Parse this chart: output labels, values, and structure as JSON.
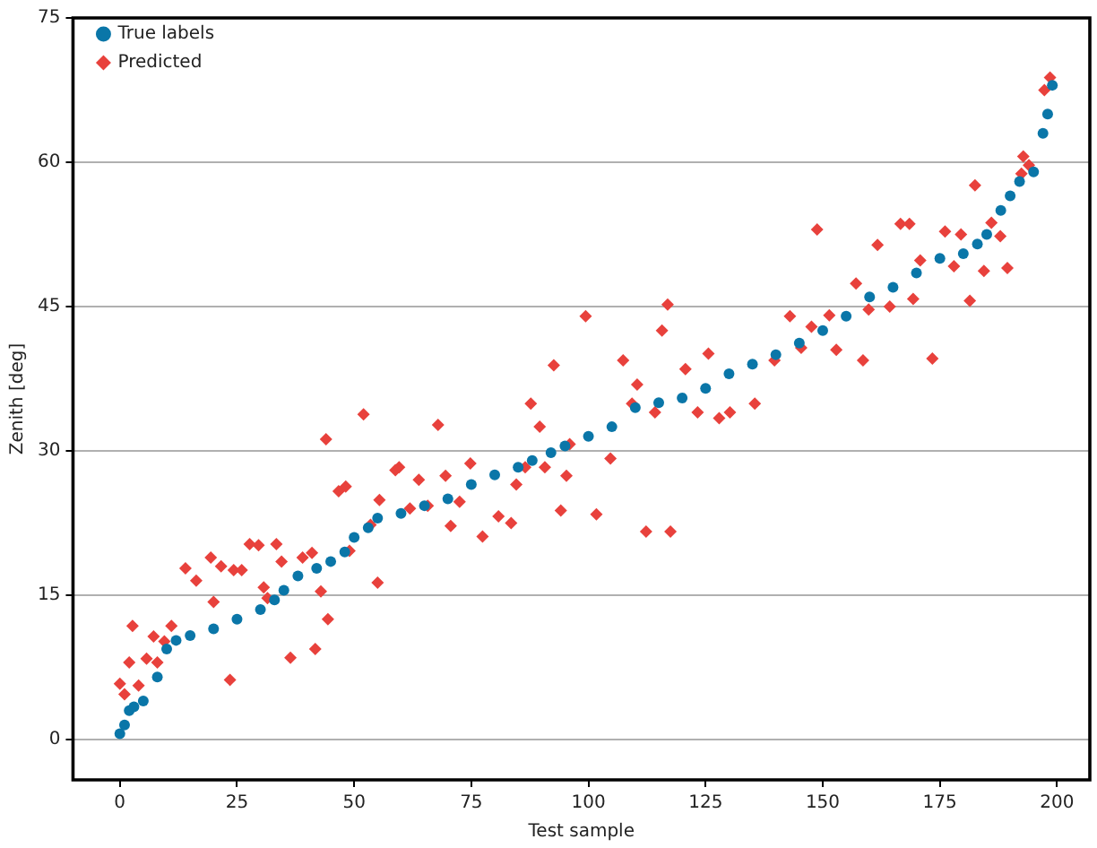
{
  "chart_data": {
    "type": "scatter",
    "xlabel": "Test sample",
    "ylabel": "Zenith [deg]",
    "xlim": [
      -10,
      207
    ],
    "ylim": [
      -4.2,
      75
    ],
    "xticks": [
      0,
      25,
      50,
      75,
      100,
      125,
      150,
      175,
      200
    ],
    "yticks": [
      0,
      15,
      30,
      45,
      60,
      75
    ],
    "grid": "y",
    "legend": "top left",
    "series": [
      {
        "name": "True labels",
        "color": "#0a76a8",
        "marker": "circle",
        "x": [
          0,
          1,
          2,
          3,
          5,
          8,
          10,
          12,
          15,
          20,
          25,
          30,
          33,
          35,
          38,
          42,
          45,
          48,
          50,
          53,
          55,
          60,
          65,
          70,
          75,
          80,
          85,
          88,
          92,
          95,
          100,
          105,
          110,
          115,
          120,
          125,
          130,
          135,
          140,
          145,
          150,
          155,
          160,
          165,
          170,
          175,
          180,
          183,
          185,
          188,
          190,
          192,
          195,
          197,
          198,
          199
        ],
        "values": [
          0.6,
          1.5,
          3,
          3.4,
          4,
          6.5,
          9.4,
          10.3,
          10.8,
          11.5,
          12.5,
          13.5,
          14.5,
          15.5,
          17,
          17.8,
          18.5,
          19.5,
          21,
          22,
          23,
          23.5,
          24.3,
          25,
          26.5,
          27.5,
          28.3,
          29,
          29.8,
          30.5,
          31.5,
          32.5,
          34.5,
          35,
          35.5,
          36.5,
          38,
          39,
          40,
          41.2,
          42.5,
          44,
          46,
          47,
          48.5,
          50,
          50.5,
          51.5,
          52.5,
          55,
          56.5,
          58,
          59,
          63,
          65,
          68
        ]
      },
      {
        "name": "Predicted",
        "color": "#e8413c",
        "marker": "diamond",
        "x": [
          0,
          1,
          2,
          2.7,
          4,
          5.7,
          7.2,
          8,
          9.5,
          11,
          14,
          16.3,
          19.4,
          20,
          21.6,
          23.5,
          24.3,
          26,
          27.7,
          29.6,
          30.7,
          31.5,
          33.4,
          34.5,
          36.4,
          39,
          41,
          41.7,
          42.9,
          44,
          44.4,
          46.7,
          48.2,
          49,
          52,
          53.5,
          55,
          55.4,
          58.8,
          59.6,
          61.9,
          63.8,
          65.7,
          67.9,
          69.5,
          70.6,
          72.5,
          74.8,
          77.4,
          80.8,
          83.5,
          84.6,
          86.5,
          87.7,
          89.6,
          90.7,
          92.6,
          94.1,
          95.3,
          96,
          99.4,
          101.7,
          104.7,
          107.4,
          109.3,
          110.4,
          112.3,
          114.2,
          115.7,
          116.9,
          117.5,
          120.7,
          123.3,
          125.6,
          127.9,
          130.2,
          135.5,
          139.7,
          143,
          145.4,
          147.6,
          148.8,
          151.4,
          152.9,
          157.1,
          158.6,
          159.8,
          161.7,
          164.3,
          166.6,
          168.5,
          169.3,
          170.8,
          173.4,
          176.1,
          178,
          179.5,
          181.4,
          182.5,
          184.4,
          186,
          187.9,
          189.4,
          192.4,
          192.8,
          194,
          197.3,
          198.5
        ],
        "values": [
          5.8,
          4.7,
          8,
          11.8,
          5.6,
          8.4,
          10.7,
          8,
          10.2,
          11.8,
          17.8,
          16.5,
          18.9,
          14.3,
          18,
          6.2,
          17.6,
          17.6,
          20.3,
          20.2,
          15.8,
          14.7,
          20.3,
          18.5,
          8.5,
          18.9,
          19.4,
          9.4,
          15.4,
          31.2,
          12.5,
          25.8,
          26.3,
          19.6,
          33.8,
          22.3,
          16.3,
          24.9,
          28,
          28.3,
          24,
          27,
          24.3,
          32.7,
          27.4,
          22.2,
          24.7,
          28.7,
          21.1,
          23.2,
          22.5,
          26.5,
          28.3,
          34.9,
          32.5,
          28.3,
          38.9,
          23.8,
          27.4,
          30.7,
          44,
          23.4,
          29.2,
          39.4,
          34.9,
          36.9,
          21.6,
          34,
          42.5,
          45.2,
          21.6,
          38.5,
          34,
          40.1,
          33.4,
          34,
          34.9,
          39.4,
          44,
          40.7,
          42.9,
          53,
          44.1,
          40.5,
          47.4,
          39.4,
          44.7,
          51.4,
          45,
          53.6,
          53.6,
          45.8,
          49.8,
          39.6,
          52.8,
          49.2,
          52.5,
          45.6,
          57.6,
          48.7,
          53.7,
          52.3,
          49,
          58.8,
          60.6,
          59.7,
          67.5,
          68.8
        ]
      }
    ]
  }
}
